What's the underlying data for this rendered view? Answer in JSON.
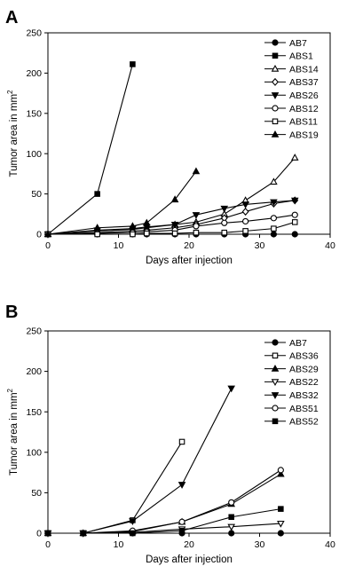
{
  "chart_data": [
    {
      "type": "line",
      "panel_label": "A",
      "xlabel": "Days after injection",
      "ylabel_main": "Tumor area in mm",
      "ylabel_sup": "2",
      "xlim": [
        0,
        40
      ],
      "ylim": [
        0,
        250
      ],
      "xticks": [
        0,
        10,
        20,
        30,
        40
      ],
      "yticks": [
        0,
        50,
        100,
        150,
        200,
        250
      ],
      "legend": "top-right",
      "series": [
        {
          "name": "AB7",
          "marker": "circle",
          "filled": true,
          "x": [
            0,
            7,
            12,
            14,
            18,
            21,
            25,
            28,
            32,
            35
          ],
          "y": [
            0,
            0,
            0,
            0,
            0,
            0,
            0,
            0,
            0,
            0
          ]
        },
        {
          "name": "ABS1",
          "marker": "square",
          "filled": true,
          "x": [
            0,
            7,
            12
          ],
          "y": [
            0,
            50,
            211
          ]
        },
        {
          "name": "ABS14",
          "marker": "triangle-up",
          "filled": false,
          "x": [
            0,
            7,
            12,
            14,
            18,
            21,
            25,
            28,
            32,
            35
          ],
          "y": [
            0,
            4,
            6,
            8,
            12,
            15,
            25,
            42,
            65,
            95
          ]
        },
        {
          "name": "ABS37",
          "marker": "diamond",
          "filled": false,
          "x": [
            0,
            7,
            12,
            14,
            18,
            21,
            25,
            28,
            32,
            35
          ],
          "y": [
            0,
            2,
            4,
            5,
            8,
            12,
            20,
            28,
            38,
            42
          ]
        },
        {
          "name": "ABS26",
          "marker": "triangle-down",
          "filled": true,
          "x": [
            0,
            7,
            12,
            14,
            18,
            21,
            25,
            28,
            32,
            35
          ],
          "y": [
            0,
            5,
            7,
            9,
            12,
            24,
            32,
            37,
            40,
            42
          ]
        },
        {
          "name": "ABS12",
          "marker": "circle",
          "filled": false,
          "x": [
            0,
            7,
            12,
            14,
            18,
            21,
            25,
            28,
            32,
            35
          ],
          "y": [
            0,
            1,
            2,
            3,
            5,
            10,
            14,
            16,
            20,
            24
          ]
        },
        {
          "name": "ABS11",
          "marker": "square",
          "filled": false,
          "x": [
            0,
            7,
            12,
            14,
            18,
            21,
            25,
            28,
            32,
            35
          ],
          "y": [
            0,
            0,
            0,
            1,
            1,
            2,
            2,
            4,
            7,
            15
          ]
        },
        {
          "name": "ABS19",
          "marker": "triangle-up",
          "filled": true,
          "x": [
            0,
            7,
            12,
            14,
            18,
            21
          ],
          "y": [
            0,
            8,
            10,
            14,
            43,
            78
          ]
        }
      ]
    },
    {
      "type": "line",
      "panel_label": "B",
      "xlabel": "Days after injection",
      "ylabel_main": "Tumor area in mm",
      "ylabel_sup": "2",
      "xlim": [
        0,
        40
      ],
      "ylim": [
        0,
        250
      ],
      "xticks": [
        0,
        10,
        20,
        30,
        40
      ],
      "yticks": [
        0,
        50,
        100,
        150,
        200,
        250
      ],
      "legend": "top-right",
      "series": [
        {
          "name": "AB7",
          "marker": "circle",
          "filled": true,
          "x": [
            0,
            5,
            12,
            19,
            26,
            33
          ],
          "y": [
            0,
            0,
            0,
            0,
            0,
            0
          ]
        },
        {
          "name": "ABS36",
          "marker": "square",
          "filled": false,
          "x": [
            0,
            5,
            12,
            19
          ],
          "y": [
            0,
            0,
            16,
            113
          ]
        },
        {
          "name": "ABS29",
          "marker": "triangle-up",
          "filled": true,
          "x": [
            0,
            5,
            12,
            19,
            26,
            33
          ],
          "y": [
            0,
            0,
            2,
            14,
            36,
            73
          ]
        },
        {
          "name": "ABS22",
          "marker": "triangle-down",
          "filled": false,
          "x": [
            0,
            5,
            12,
            19,
            26,
            33
          ],
          "y": [
            0,
            0,
            1,
            5,
            8,
            12
          ]
        },
        {
          "name": "ABS32",
          "marker": "triangle-down",
          "filled": true,
          "x": [
            0,
            5,
            12,
            19,
            26
          ],
          "y": [
            0,
            0,
            15,
            60,
            179
          ]
        },
        {
          "name": "ABS51",
          "marker": "circle",
          "filled": false,
          "x": [
            0,
            5,
            12,
            19,
            26,
            33
          ],
          "y": [
            0,
            0,
            3,
            14,
            38,
            78
          ]
        },
        {
          "name": "ABS52",
          "marker": "square",
          "filled": true,
          "x": [
            0,
            5,
            12,
            19,
            26,
            33
          ],
          "y": [
            0,
            0,
            0,
            3,
            20,
            30
          ]
        }
      ]
    }
  ]
}
